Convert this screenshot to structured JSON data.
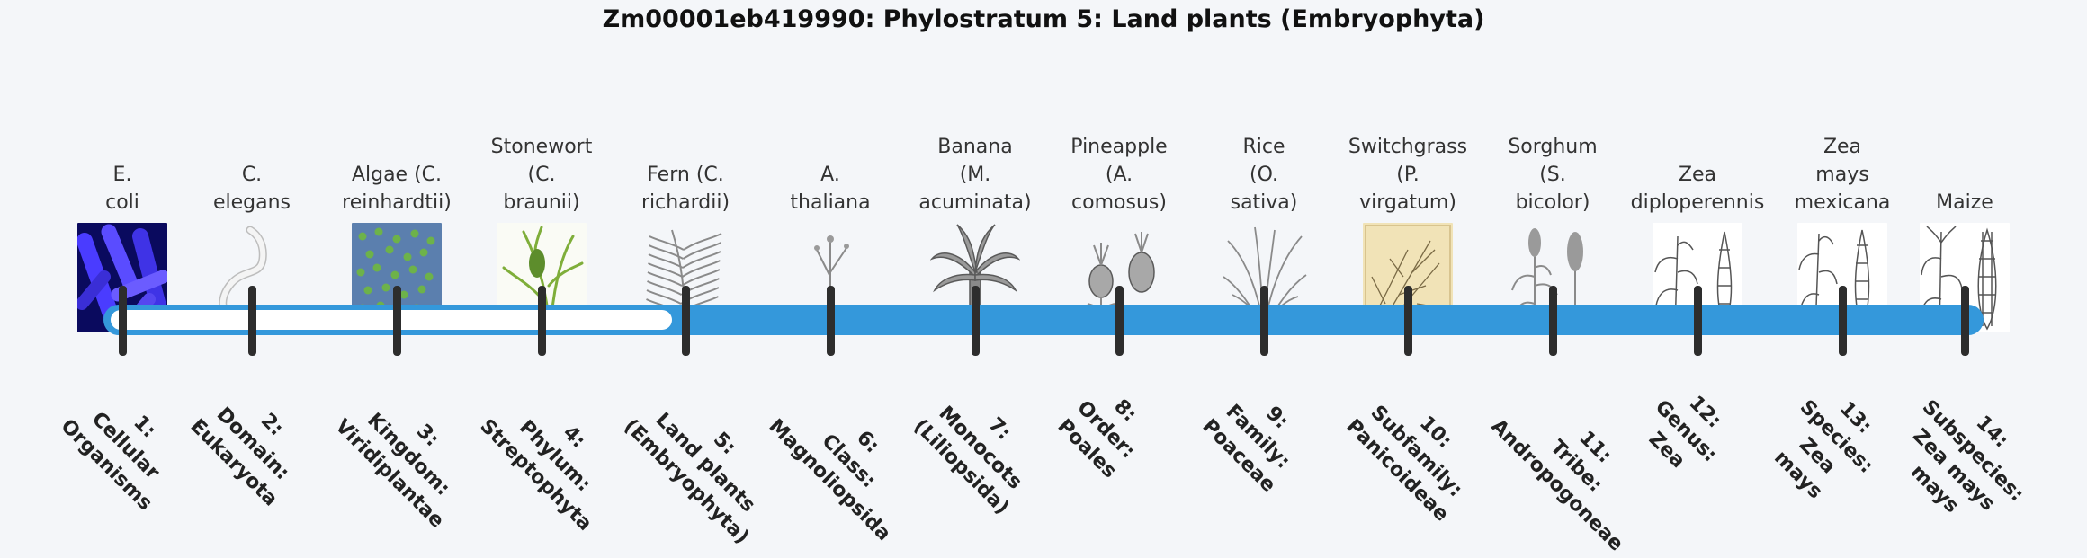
{
  "title": "Zm00001eb419990: Phylostratum 5: Land plants (Embryophyta)",
  "colors": {
    "bar": "#3498db",
    "bar_inner": "#ffffff",
    "tick": "#2d2d2d"
  },
  "organisms": [
    {
      "name": [
        "E.",
        "coli"
      ],
      "image": "bacteria-icon"
    },
    {
      "name": [
        "C.",
        "elegans"
      ],
      "image": "worm-icon"
    },
    {
      "name": [
        "Algae (C.",
        "reinhardtii)"
      ],
      "image": "algae-icon"
    },
    {
      "name": [
        "Stonewort",
        "(C.",
        "braunii)"
      ],
      "image": "stonewort-icon"
    },
    {
      "name": [
        "Fern (C.",
        "richardii)"
      ],
      "image": "fern-icon"
    },
    {
      "name": [
        "A.",
        "thaliana"
      ],
      "image": "arabidopsis-icon"
    },
    {
      "name": [
        "Banana",
        "(M.",
        "acuminata)"
      ],
      "image": "banana-icon"
    },
    {
      "name": [
        "Pineapple",
        "(A.",
        "comosus)"
      ],
      "image": "pineapple-icon"
    },
    {
      "name": [
        "Rice",
        "(O.",
        "sativa)"
      ],
      "image": "rice-icon"
    },
    {
      "name": [
        "Switchgrass",
        "(P.",
        "virgatum)"
      ],
      "image": "switchgrass-icon"
    },
    {
      "name": [
        "Sorghum",
        "(S.",
        "bicolor)"
      ],
      "image": "sorghum-icon"
    },
    {
      "name": [
        "Zea",
        "diploperennis"
      ],
      "image": "zea-diploperennis-icon"
    },
    {
      "name": [
        "Zea",
        "mays",
        "mexicana"
      ],
      "image": "zea-mexicana-icon"
    },
    {
      "name": [
        "Maize"
      ],
      "image": "maize-icon"
    }
  ],
  "stages": [
    [
      "1:",
      "Cellular",
      "Organisms"
    ],
    [
      "2:",
      "Domain:",
      "Eukaryota"
    ],
    [
      "3:",
      "Kingdom:",
      "Viridiplantae"
    ],
    [
      "4:",
      "Phylum:",
      "Streptophyta"
    ],
    [
      "5:",
      "Land plants",
      "(Embryophyta)"
    ],
    [
      "6:",
      "Class:",
      "Magnoliopsida"
    ],
    [
      "7:",
      "Monocots",
      "(Liliopsida)"
    ],
    [
      "8:",
      "Order:",
      "Poales"
    ],
    [
      "9:",
      "Family:",
      "Poaceae"
    ],
    [
      "10:",
      "Subfamily:",
      "Panicoideae"
    ],
    [
      "11:",
      "Tribe:",
      "Andropogoneae"
    ],
    [
      "12:",
      "Genus:",
      "Zea"
    ],
    [
      "13:",
      "Species:",
      "Zea",
      "mays"
    ],
    [
      "14:",
      "Subspecies:",
      "Zea mays",
      "mays"
    ]
  ],
  "current_stage": 5
}
